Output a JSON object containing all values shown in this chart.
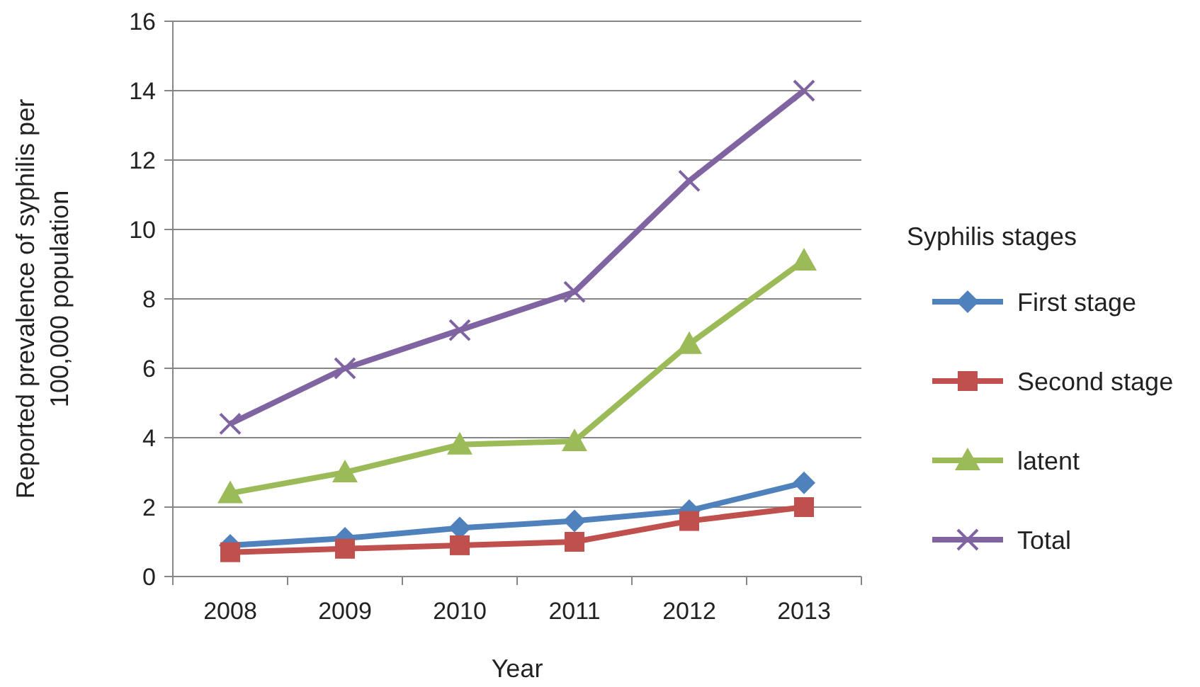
{
  "chart_data": {
    "type": "line",
    "xlabel": "Year",
    "ylabel": "Reported prevalence of syphilis per 100,000 population",
    "legend_title": "Syphilis stages",
    "categories": [
      "2008",
      "2009",
      "2010",
      "2011",
      "2012",
      "2013"
    ],
    "ylim": [
      0,
      16
    ],
    "yticks": [
      0,
      2,
      4,
      6,
      8,
      10,
      12,
      14,
      16
    ],
    "grid": "y",
    "legend": "right",
    "series": [
      {
        "name": "First stage",
        "color": "#4f81bd",
        "marker": "diamond",
        "values": [
          0.9,
          1.1,
          1.4,
          1.6,
          1.9,
          2.7
        ]
      },
      {
        "name": "Second stage",
        "color": "#c0504d",
        "marker": "square",
        "values": [
          0.7,
          0.8,
          0.9,
          1.0,
          1.6,
          2.0
        ]
      },
      {
        "name": "latent",
        "color": "#9bbb59",
        "marker": "triangle",
        "values": [
          2.4,
          3.0,
          3.8,
          3.9,
          6.7,
          9.1
        ]
      },
      {
        "name": "Total",
        "color": "#8064a2",
        "marker": "cross",
        "values": [
          4.4,
          6.0,
          7.1,
          8.2,
          11.4,
          14.0
        ]
      }
    ]
  }
}
